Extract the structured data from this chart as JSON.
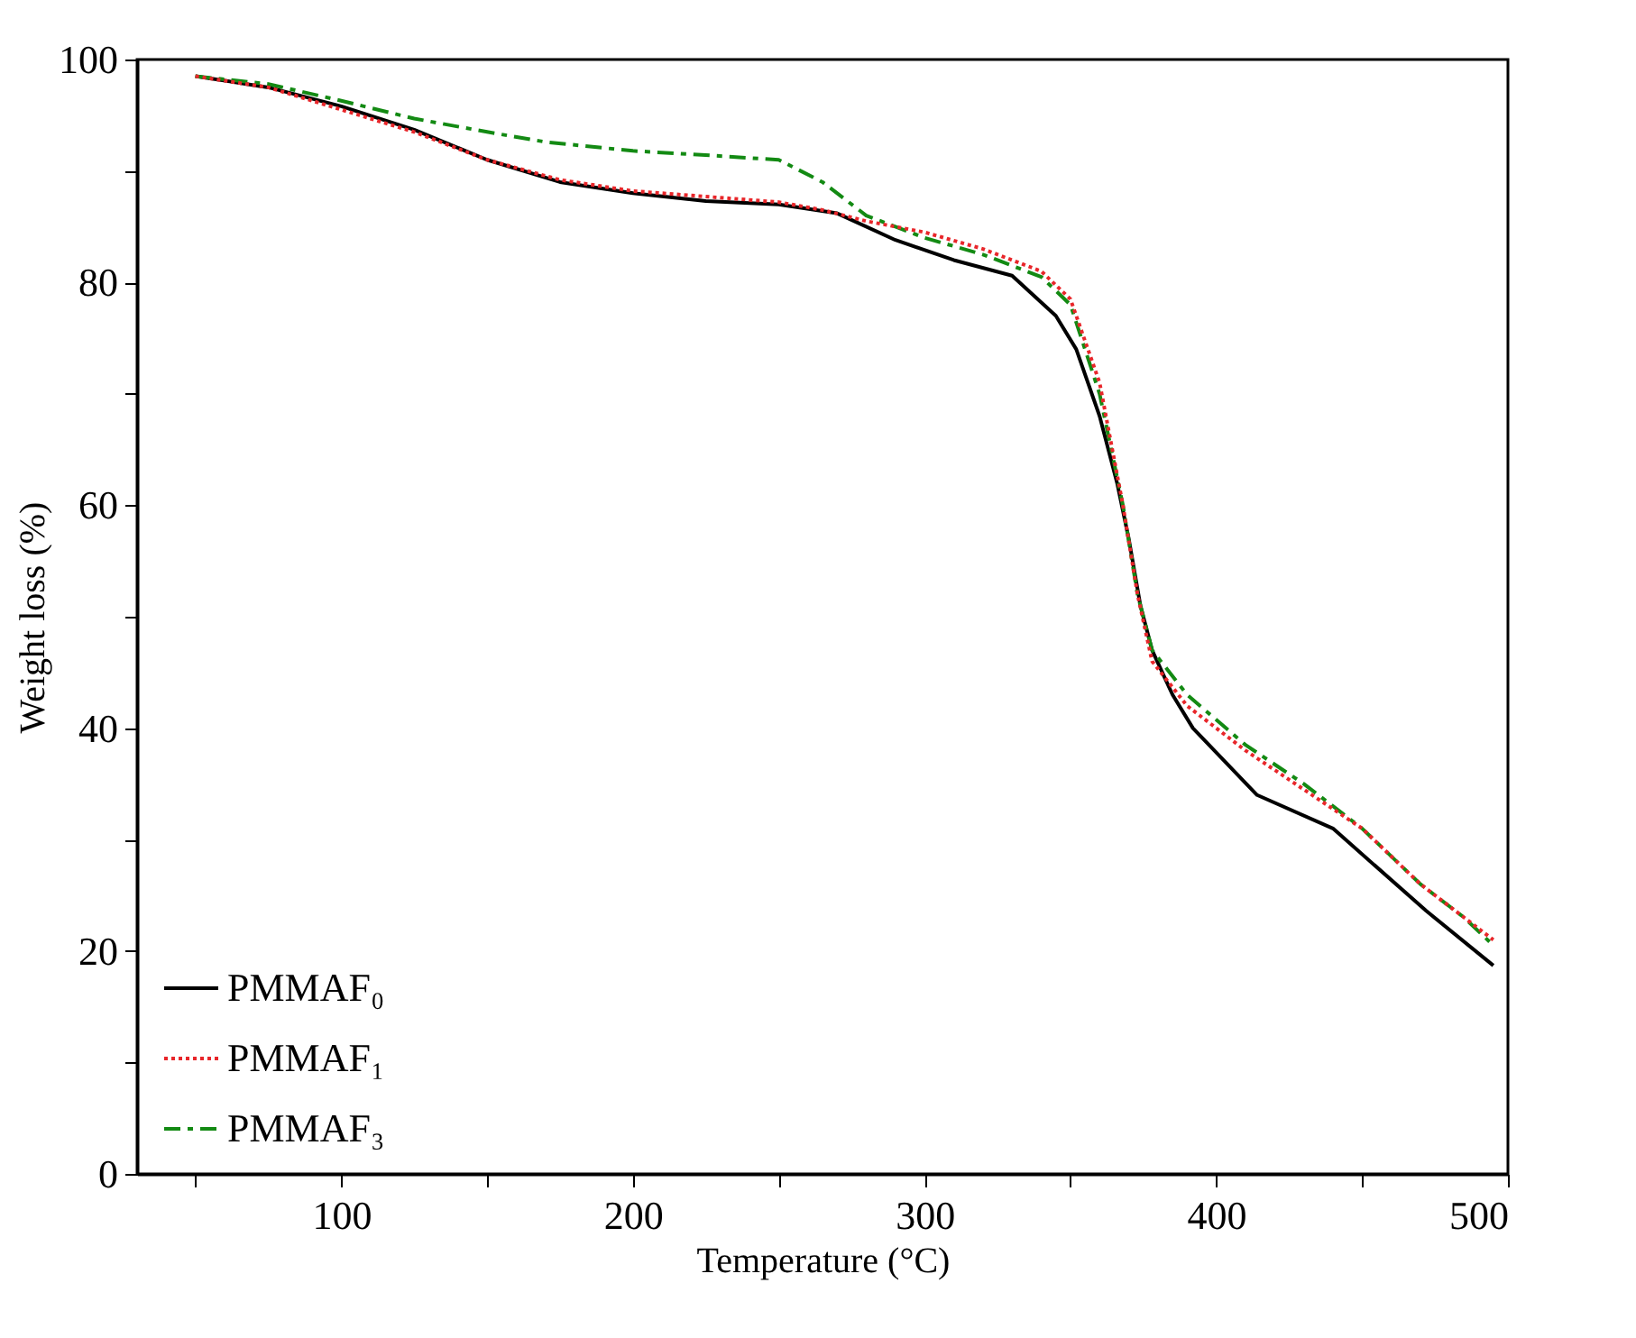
{
  "chart_data": {
    "type": "line",
    "xlabel": "Temperature (°C)",
    "ylabel": "Weight loss (%)",
    "xlim": [
      30,
      500
    ],
    "ylim": [
      0,
      100
    ],
    "xticks": [
      {
        "value": 50,
        "label": null
      },
      100,
      {
        "value": 150,
        "label": null
      },
      200,
      {
        "value": 250,
        "label": null
      },
      300,
      {
        "value": 350,
        "label": null
      },
      400,
      {
        "value": 450,
        "label": null
      },
      500
    ],
    "yticks": [
      0,
      {
        "value": 10,
        "label": null
      },
      20,
      {
        "value": 30,
        "label": null
      },
      40,
      {
        "value": 50,
        "label": null
      },
      60,
      {
        "value": 70,
        "label": null
      },
      80,
      {
        "value": 90,
        "label": null
      },
      100
    ],
    "grid": false,
    "legend": "bottom left",
    "marker": "none",
    "series": [
      {
        "name": "PMMAF₀",
        "color": "#000000",
        "line_style": "solid",
        "x": [
          50,
          75,
          100,
          125,
          150,
          175,
          200,
          225,
          250,
          270,
          290,
          310,
          330,
          345,
          352,
          360,
          366,
          370,
          374,
          378,
          385,
          392,
          414,
          440,
          472,
          495
        ],
        "values": [
          98.5,
          97.5,
          95.8,
          93.7,
          91,
          89,
          88,
          87.3,
          87,
          86.2,
          83.8,
          82,
          80.6,
          77,
          74,
          68,
          62,
          57,
          51,
          47,
          43,
          40,
          34,
          31,
          23.6,
          18.7
        ]
      },
      {
        "name": "PMMAF₁",
        "color": "#e8262a",
        "line_style": "dotted",
        "x": [
          50,
          75,
          100,
          125,
          150,
          175,
          200,
          225,
          250,
          265,
          280,
          300,
          320,
          340,
          350,
          360,
          368,
          373,
          378,
          390,
          410,
          430,
          450,
          470,
          485,
          495
        ],
        "values": [
          98.5,
          97.5,
          95.5,
          93.5,
          91,
          89.2,
          88.2,
          87.7,
          87.2,
          86.5,
          85.5,
          84.5,
          83,
          81,
          78.5,
          71,
          60,
          52,
          46,
          42,
          38,
          34.5,
          31,
          26,
          23,
          21
        ]
      },
      {
        "name": "PMMAF₃",
        "color": "#138a13",
        "line_style": "dashed",
        "x": [
          50,
          75,
          100,
          125,
          150,
          170,
          200,
          220,
          250,
          265,
          280,
          300,
          320,
          340,
          350,
          360,
          368,
          373,
          378,
          390,
          410,
          430,
          450,
          470,
          485,
          495
        ],
        "values": [
          98.5,
          97.8,
          96.3,
          94.7,
          93.5,
          92.6,
          91.8,
          91.5,
          91,
          89,
          86,
          84,
          82.5,
          80.5,
          78,
          70,
          60,
          52,
          47,
          43,
          38.5,
          35,
          31,
          26,
          23,
          20.5
        ]
      }
    ]
  }
}
